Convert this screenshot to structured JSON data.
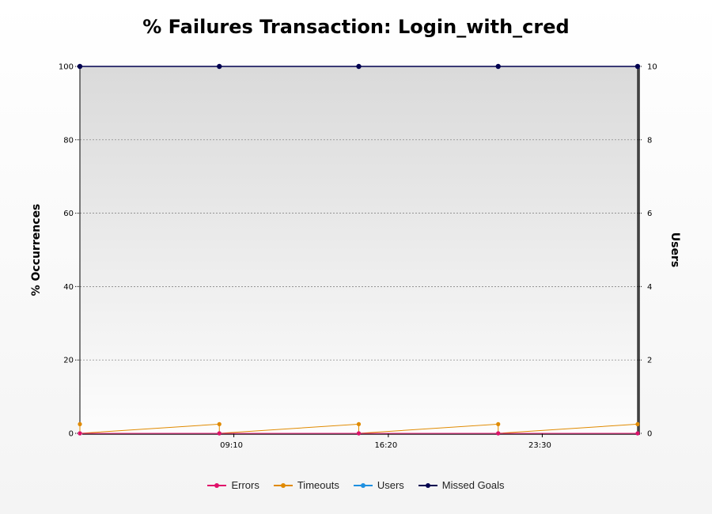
{
  "chart_data": {
    "type": "line",
    "title": "% Failures Transaction: Login_with_cred",
    "ylabel": "% Occurrences",
    "y2label": "Users",
    "ylim": [
      0,
      100
    ],
    "y2lim": [
      0,
      10
    ],
    "yticks": [
      "0",
      "20",
      "40",
      "60",
      "80",
      "100"
    ],
    "y2ticks": [
      "0",
      "2",
      "4",
      "6",
      "8",
      "10"
    ],
    "xticks": [
      {
        "label": "09:10",
        "x": 0.276
      },
      {
        "label": "16:20",
        "x": 0.553
      },
      {
        "label": "23:30",
        "x": 0.829
      }
    ],
    "grid": true,
    "legend_position": "bottom",
    "series": [
      {
        "name": "Missed Goals",
        "axis": "left",
        "color": "#000050",
        "x": [
          0,
          0.25,
          0.5,
          0.75,
          1
        ],
        "values": [
          100,
          100,
          100,
          100,
          100
        ]
      },
      {
        "name": "Timeouts",
        "axis": "left",
        "color": "#e08a00",
        "x": [
          0,
          0,
          0.25,
          0.25,
          0.5,
          0.5,
          0.75,
          0.75,
          1
        ],
        "values": [
          2.5,
          0,
          2.5,
          0,
          2.5,
          0,
          2.5,
          0,
          2.5
        ]
      },
      {
        "name": "Users",
        "axis": "right",
        "color": "#1e90e0",
        "x": [
          0,
          0.25,
          0.5,
          0.75,
          1
        ],
        "values": [
          0,
          0,
          0,
          0,
          0
        ]
      },
      {
        "name": "Errors",
        "axis": "left",
        "color": "#e0106a",
        "x": [
          0,
          0.25,
          0.5,
          0.75,
          1
        ],
        "values": [
          0,
          0,
          0,
          0,
          0
        ]
      }
    ],
    "legend": [
      {
        "name": "Errors",
        "color": "#e0106a"
      },
      {
        "name": "Timeouts",
        "color": "#e08a00"
      },
      {
        "name": "Users",
        "color": "#1e90e0"
      },
      {
        "name": "Missed Goals",
        "color": "#000050"
      }
    ]
  }
}
